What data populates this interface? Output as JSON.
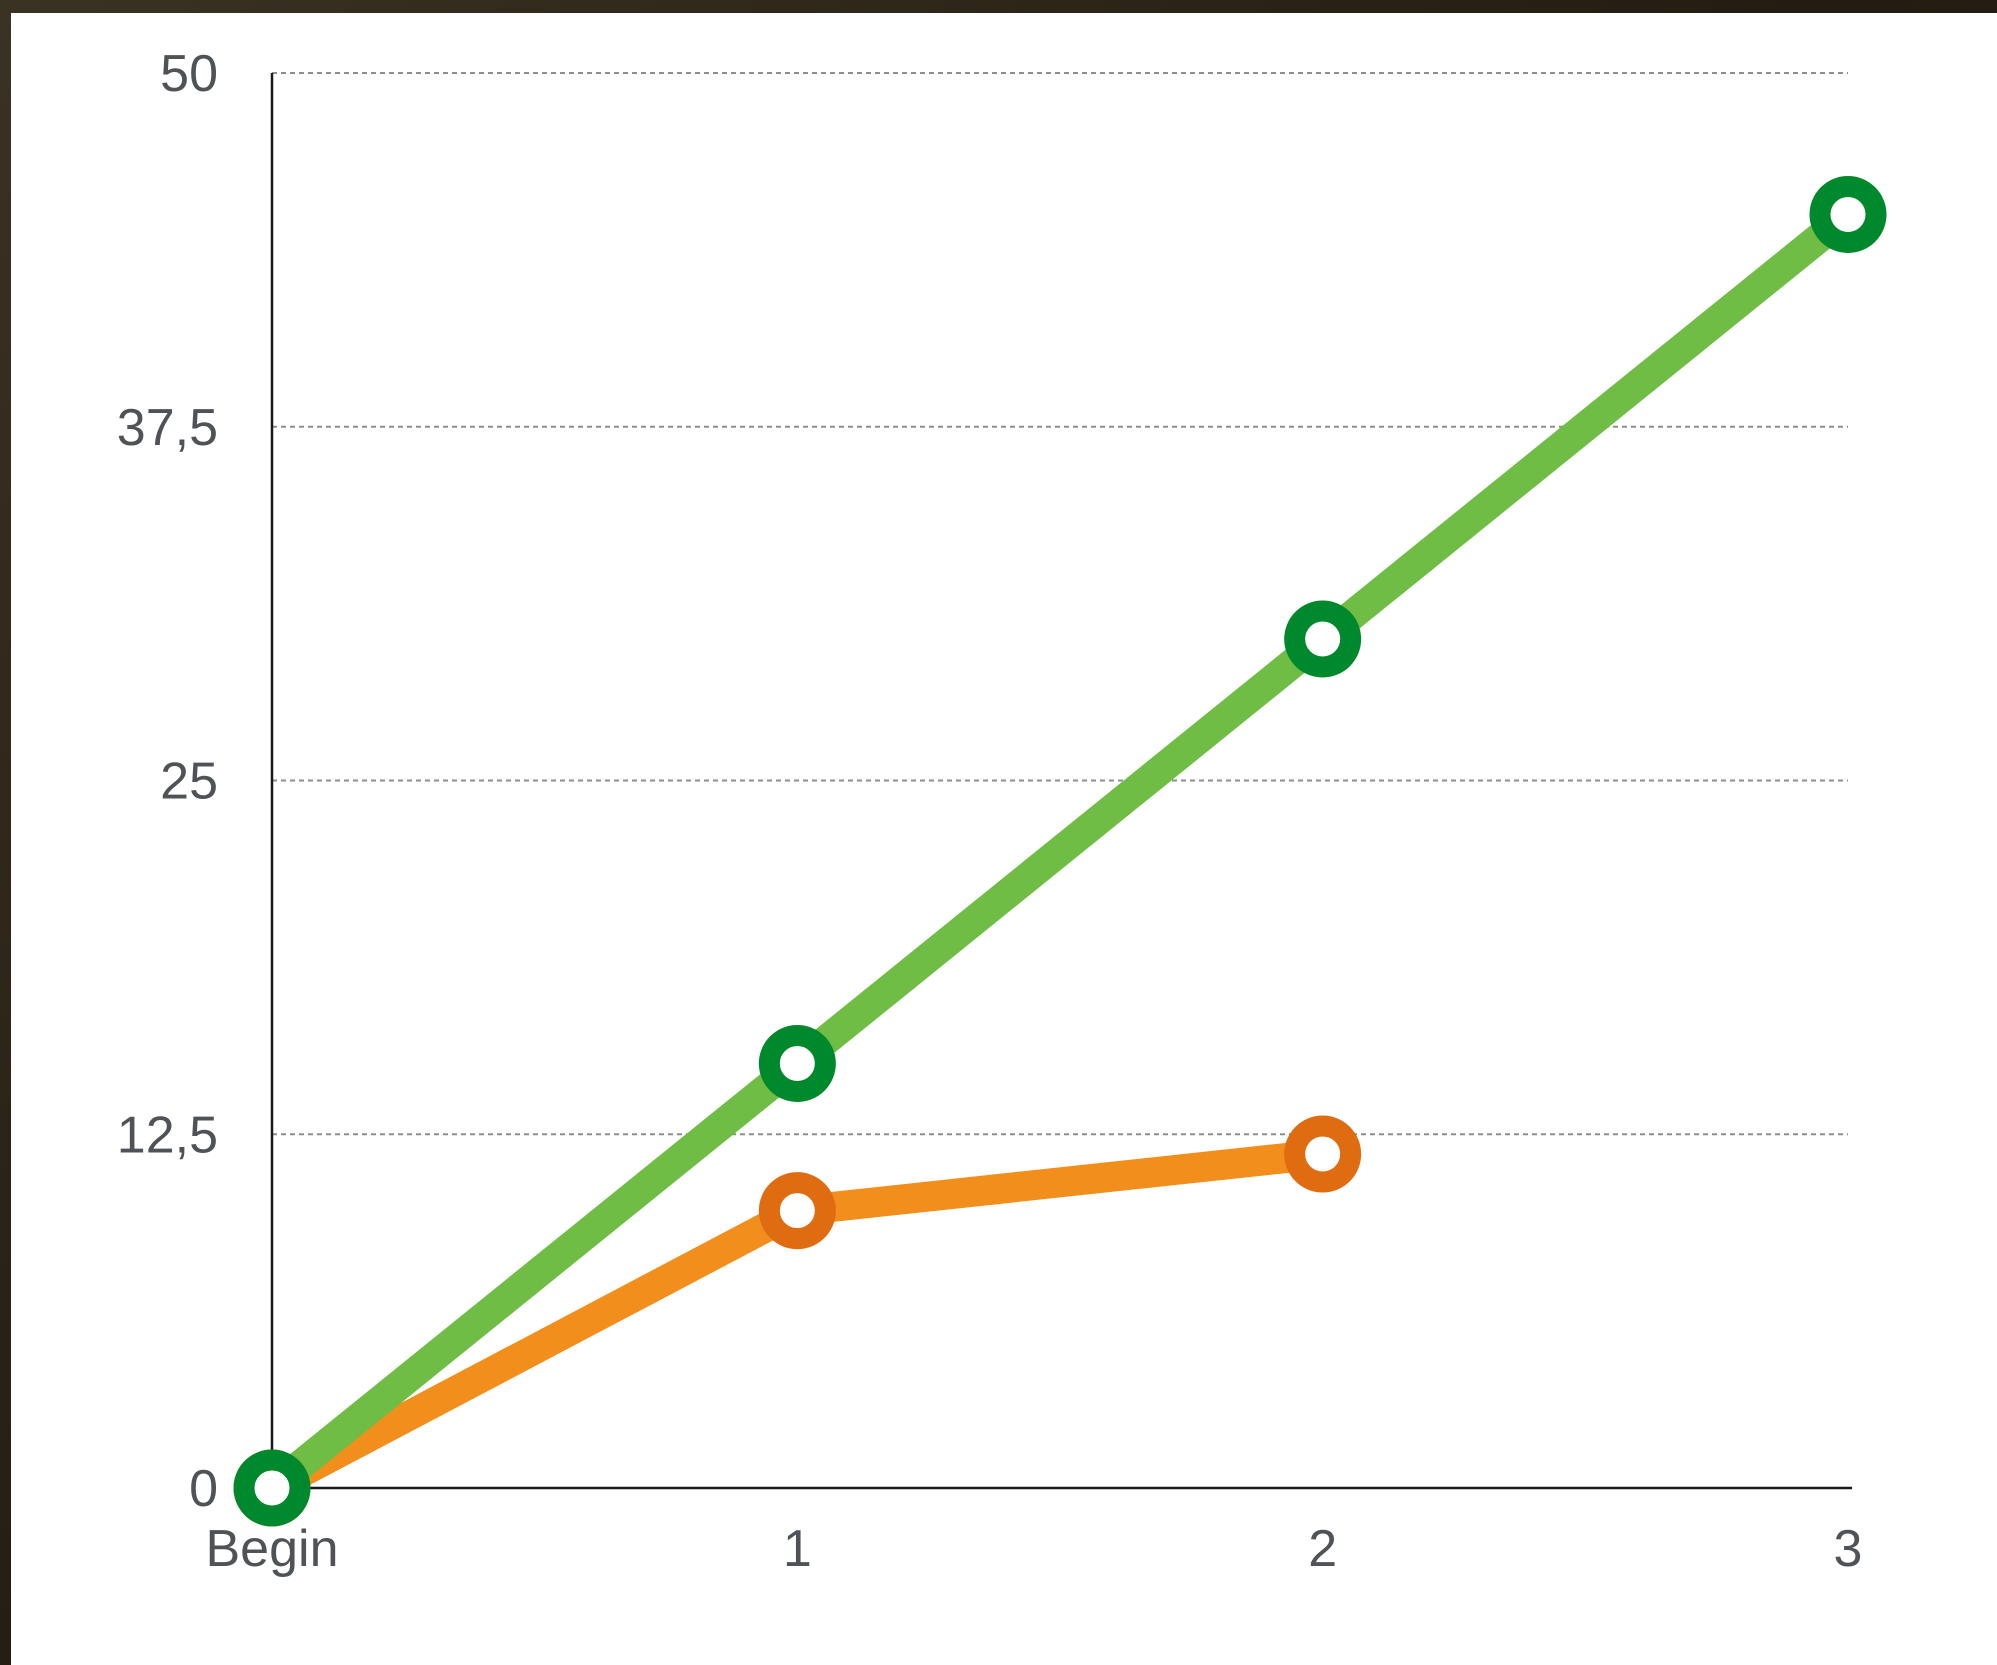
{
  "chart_data": {
    "type": "line",
    "title": "",
    "xlabel": "",
    "ylabel": "",
    "categories": [
      "Begin",
      "1",
      "2",
      "3"
    ],
    "ylim": [
      0,
      50
    ],
    "yticks": [
      "0",
      "12,5",
      "25",
      "37,5",
      "50"
    ],
    "ytick_values": [
      0,
      12.5,
      25,
      37.5,
      50
    ],
    "grid": "horizontal dashed",
    "legend": "none",
    "series": [
      {
        "values": [
          0,
          9.8,
          11.8,
          null
        ],
        "line_color": "#f28e1c",
        "marker_color": "#e06c12"
      },
      {
        "values": [
          0,
          15,
          30,
          45
        ],
        "line_color": "#6fbd44",
        "marker_color": "#00892c"
      }
    ]
  }
}
